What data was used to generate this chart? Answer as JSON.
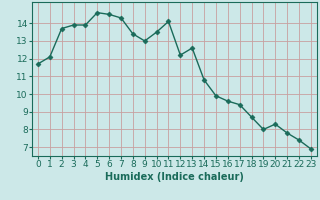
{
  "x": [
    0,
    1,
    2,
    3,
    4,
    5,
    6,
    7,
    8,
    9,
    10,
    11,
    12,
    13,
    14,
    15,
    16,
    17,
    18,
    19,
    20,
    21,
    22,
    23
  ],
  "y": [
    11.7,
    12.1,
    13.7,
    13.9,
    13.9,
    14.6,
    14.5,
    14.3,
    13.4,
    13.0,
    13.5,
    14.1,
    12.2,
    12.6,
    10.8,
    9.9,
    9.6,
    9.4,
    8.7,
    8.0,
    8.3,
    7.8,
    7.4,
    6.9
  ],
  "xlabel": "Humidex (Indice chaleur)",
  "xlim": [
    -0.5,
    23.5
  ],
  "ylim": [
    6.5,
    15.2
  ],
  "yticks": [
    7,
    8,
    9,
    10,
    11,
    12,
    13,
    14
  ],
  "xticks": [
    0,
    1,
    2,
    3,
    4,
    5,
    6,
    7,
    8,
    9,
    10,
    11,
    12,
    13,
    14,
    15,
    16,
    17,
    18,
    19,
    20,
    21,
    22,
    23
  ],
  "line_color": "#1a6b5a",
  "marker": "D",
  "marker_size": 2.5,
  "bg_color": "#cce8e8",
  "grid_color_major": "#c8a0a0",
  "grid_color_minor": "#ffffff",
  "tick_color": "#1a6b5a",
  "label_color": "#1a6b5a",
  "label_fontsize": 7,
  "tick_fontsize": 6.5
}
